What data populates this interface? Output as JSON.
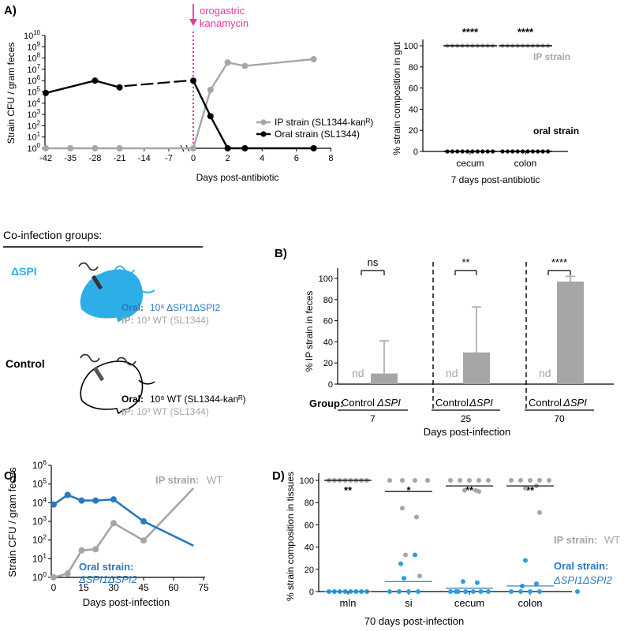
{
  "panel_labels": {
    "A": "A)",
    "B": "B)",
    "C": "C)",
    "D": "D)"
  },
  "colors": {
    "ip": "#a6a6a6",
    "oral_black": "#000000",
    "oral_blue": "#2a78bd",
    "spi": "#2eaee6",
    "kanamycin": "#e8399b"
  },
  "groups": {
    "title": "Co-infection groups:",
    "spi": {
      "name": "ΔSPI",
      "oral_label": "Oral:",
      "oral_text": "10⁸ ΔSPI1ΔSPI2",
      "ip_label": "IP:",
      "ip_text": "10³ WT (SL1344)"
    },
    "control": {
      "name": "Control",
      "oral_label": "Oral:",
      "oral_text": "10⁸ WT (SL1344-kanᴿ)",
      "ip_label": "IP:",
      "ip_text": "10³ WT (SL1344)"
    }
  },
  "chart_data": [
    {
      "id": "A_left",
      "type": "line",
      "ylabel": "Strain CFU / gram feces",
      "xlabel": "Days post-antibiotic",
      "yscale": "log",
      "ylim": [
        1,
        10000000000
      ],
      "ytick_exponents": [
        0,
        1,
        2,
        3,
        4,
        5,
        6,
        7,
        8,
        9,
        10
      ],
      "xticks_left": [
        -42,
        -35,
        -28,
        -21,
        -14,
        -7
      ],
      "xticks_right": [
        0,
        2,
        4,
        6,
        8
      ],
      "annotation": "orogastric\nkanamycin",
      "legend_position": "right",
      "series": [
        {
          "name": "IP strain (SL1344-kanᴿ)",
          "color": "#a6a6a6",
          "x": [
            -42,
            -35,
            -28,
            -21,
            0,
            1,
            2,
            3,
            7
          ],
          "y": [
            1,
            1,
            1,
            1,
            1,
            150000,
            40000000,
            20000000,
            80000000
          ]
        },
        {
          "name": "Oral strain (SL1344)",
          "color": "#000000",
          "x": [
            -42,
            -28,
            -21,
            0,
            1,
            2,
            3,
            7
          ],
          "y": [
            80000,
            1000000,
            250000,
            1000000,
            700,
            1,
            1,
            1
          ]
        }
      ]
    },
    {
      "id": "A_right",
      "type": "scatter",
      "ylabel": "% strain composition in gut",
      "xlabel": "7 days post-antibiotic",
      "ylim": [
        0,
        100
      ],
      "yticks": [
        0,
        20,
        40,
        60,
        80,
        100
      ],
      "categories": [
        "cecum",
        "colon"
      ],
      "significance": [
        "****",
        "****"
      ],
      "series_labels": {
        "ip": "IP strain",
        "oral": "oral strain"
      },
      "series": [
        {
          "color": "#a6a6a6",
          "values": [
            [
              100,
              100,
              100,
              100,
              100,
              100,
              100,
              100,
              100,
              100
            ],
            [
              100,
              100,
              100,
              100,
              100,
              100,
              100,
              100,
              100,
              100
            ]
          ]
        },
        {
          "color": "#000000",
          "values": [
            [
              0,
              0,
              0,
              0,
              0,
              0,
              0,
              0,
              0,
              0
            ],
            [
              0,
              0,
              0,
              0,
              0,
              0,
              0,
              0,
              0,
              0
            ]
          ]
        }
      ]
    },
    {
      "id": "B",
      "type": "bar",
      "ylabel": "% IP strain in feces",
      "xlabel": "Days post-infection",
      "group_prefix": "Group:",
      "ylim": [
        0,
        100
      ],
      "yticks": [
        0,
        20,
        40,
        60,
        80,
        100
      ],
      "timepoints": [
        "7",
        "25",
        "70"
      ],
      "group_names": [
        "Control",
        "ΔSPI"
      ],
      "nd_label": "nd",
      "significance": [
        "ns",
        "**",
        "****"
      ],
      "values": [
        10,
        30,
        97
      ],
      "errors_upper": [
        41,
        73,
        102
      ]
    },
    {
      "id": "C",
      "type": "line",
      "ylabel": "Strain CFU / gram feces",
      "xlabel": "Days post-infection",
      "yscale": "log",
      "ylim": [
        1,
        1000000
      ],
      "ytick_exponents": [
        0,
        1,
        2,
        3,
        4,
        5,
        6
      ],
      "xticks": [
        0,
        15,
        30,
        45,
        60,
        75
      ],
      "ip_label_bold": "IP strain:",
      "ip_label_rest": " WT",
      "oral_label_bold": "Oral strain:",
      "oral_label_italic": "ΔSPI1ΔSPI2",
      "series": [
        {
          "name": "IP strain: WT",
          "color": "#a6a6a6",
          "x": [
            0,
            7,
            14,
            21,
            30,
            45,
            70
          ],
          "y": [
            1,
            1.6,
            28,
            32,
            800,
            95,
            60000
          ]
        },
        {
          "name": "Oral strain: ΔSPI1ΔSPI2",
          "color": "#2a78bd",
          "x": [
            0,
            7,
            14,
            21,
            30,
            45,
            70
          ],
          "y": [
            8000,
            26000,
            13000,
            13000,
            15000,
            1000,
            50
          ]
        }
      ]
    },
    {
      "id": "D",
      "type": "scatter",
      "ylabel": "% strain composition in tissues",
      "xlabel": "70 days post-infection",
      "ylim": [
        0,
        100
      ],
      "yticks": [
        0,
        20,
        40,
        60,
        80,
        100
      ],
      "categories": [
        "mln",
        "si",
        "cecum",
        "colon"
      ],
      "significance": [
        "**",
        "*",
        "**",
        "**"
      ],
      "ip_label_bold": "IP strain:",
      "ip_label_rest": " WT",
      "oral_label_bold": "Oral strain:",
      "oral_label_italic": "ΔSPI1ΔSPI2",
      "means": {
        "ip": [
          100,
          90,
          95,
          95
        ],
        "oral": [
          0,
          9,
          3,
          5
        ]
      },
      "series": [
        {
          "name": "IP strain",
          "color": "#a6a6a6",
          "values": [
            [
              100,
              100,
              100,
              100,
              100,
              100,
              100,
              100
            ],
            [
              100,
              100,
              100,
              100,
              75,
              67,
              33,
              14
            ],
            [
              100,
              100,
              100,
              100,
              100,
              91,
              91,
              90
            ],
            [
              100,
              100,
              100,
              100,
              100,
              95,
              93,
              71
            ]
          ]
        },
        {
          "name": "Oral strain",
          "color": "#2a9fe0",
          "values": [
            [
              0,
              0,
              0,
              0,
              0,
              0,
              0,
              0
            ],
            [
              0,
              0,
              0,
              0,
              25,
              33,
              12,
              0
            ],
            [
              0,
              0,
              0,
              0,
              0,
              0,
              9,
              8
            ],
            [
              0,
              0,
              0,
              0,
              5,
              7,
              28,
              0
            ]
          ]
        }
      ]
    }
  ]
}
